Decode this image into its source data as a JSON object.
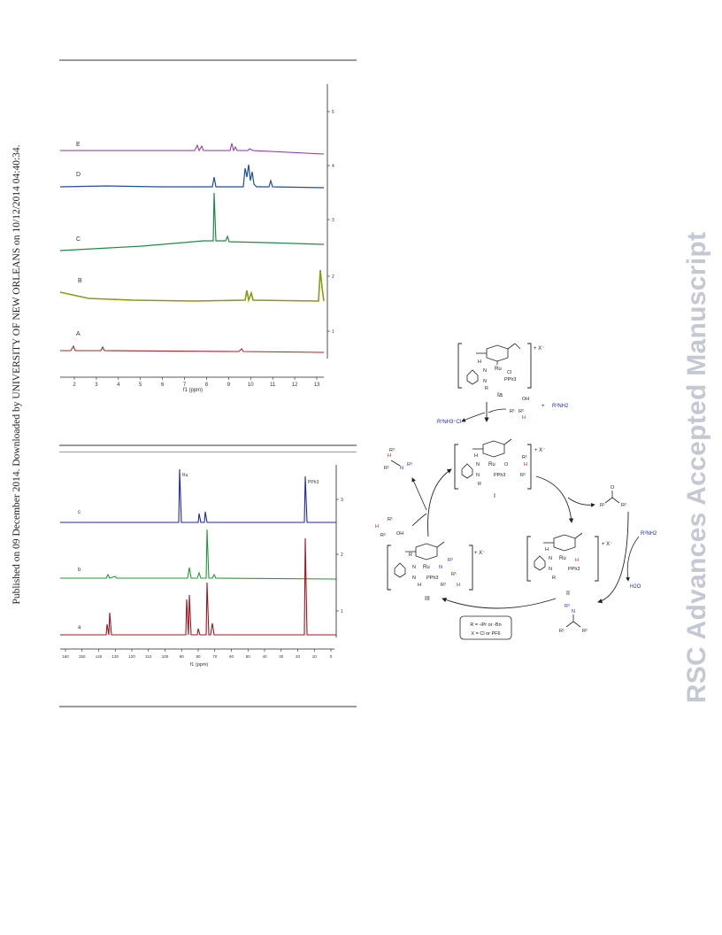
{
  "sidebar": {
    "published_line": "Published on 09 December 2014. Downloaded by UNIVERSITY OF NEW ORLEANS on 10/12/2014 04:40:34.",
    "watermark": "RSC Advances Accepted Manuscript"
  },
  "figure1": {
    "traces": [
      {
        "label": "E",
        "color": "#8b2fa8"
      },
      {
        "label": "D",
        "color": "#1f4f99"
      },
      {
        "label": "C",
        "color": "#1e8a44"
      },
      {
        "label": "B",
        "color": "#8a9a12"
      },
      {
        "label": "A",
        "color": "#a8242c"
      }
    ],
    "x_ticks": [
      "2",
      "3",
      "4",
      "5",
      "6",
      "7",
      "8",
      "9",
      "10",
      "11",
      "12",
      "13"
    ],
    "x_label": "f1 (ppm)",
    "y_ticks": [
      "5",
      "4",
      "3",
      "2",
      "1"
    ]
  },
  "figure2": {
    "traces": [
      {
        "label": "c",
        "color": "#1c2aa0"
      },
      {
        "label": "b",
        "color": "#1e9a36"
      },
      {
        "label": "a",
        "color": "#a01420"
      }
    ],
    "peak_labels": [
      "Ru",
      "PPh3"
    ],
    "x_ticks": [
      "160",
      "150",
      "140",
      "130",
      "120",
      "110",
      "100",
      "90",
      "80",
      "70",
      "60",
      "50",
      "40",
      "30",
      "20",
      "10",
      "0"
    ],
    "x_label": "f1 (ppm)",
    "y_ticks": [
      "3",
      "2",
      "1"
    ]
  },
  "scheme": {
    "complex_Ia": {
      "label": "Ia",
      "ru": "Ru",
      "ligands": [
        "Cl",
        "PPh3"
      ],
      "charge": "+ X⁻",
      "atoms": [
        "H",
        "N",
        "N",
        "R"
      ]
    },
    "substrate_alcohol": {
      "oh": "OH",
      "r1": "R¹",
      "r2": "R²",
      "h": "H"
    },
    "plus": "+",
    "amine": "R³NH2",
    "released_amine": "R³NH3⁺Cl",
    "complex_I": {
      "label": "I",
      "ru": "Ru",
      "ligands": [
        "O",
        "PPh3"
      ],
      "charge": "+ X⁻",
      "atoms": [
        "H",
        "N",
        "N",
        "R",
        "R¹",
        "R²",
        "H"
      ]
    },
    "ketone": {
      "o": "O",
      "r1": "R¹",
      "r2": "R²"
    },
    "amine2": "R³NH2",
    "water": "H2O",
    "imine": {
      "n": "N",
      "r3": "R³",
      "r1": "R¹",
      "r2": "R²"
    },
    "complex_II": {
      "label": "II",
      "ru": "Ru",
      "ligands": [
        "H",
        "PPh3"
      ],
      "charge": "+ X⁻",
      "atoms": [
        "H",
        "N",
        "N",
        "R"
      ]
    },
    "complex_III": {
      "label": "III",
      "ru": "Ru",
      "ligands": [
        "N",
        "PPh3"
      ],
      "charge": "+ X⁻",
      "atoms": [
        "R",
        "N",
        "N",
        "H",
        "R³",
        "R¹",
        "R²",
        "H"
      ]
    },
    "product_amine": {
      "n": "N",
      "r3": "R³",
      "h": "H",
      "r1": "R¹",
      "r2": "R²"
    },
    "product_alcohol": {
      "oh": "OH",
      "r1": "R¹",
      "r2": "R²",
      "h": "H"
    },
    "legend": [
      "R = -iPr or -Bn",
      "X = Cl or PF6"
    ]
  }
}
